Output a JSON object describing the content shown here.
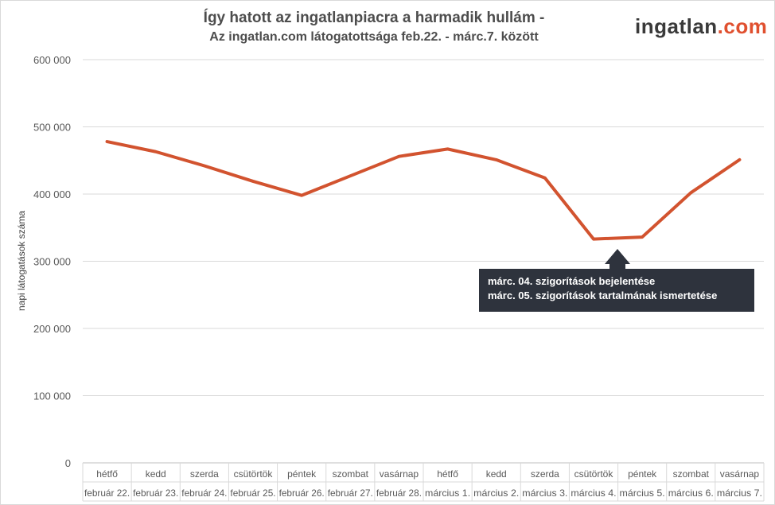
{
  "header": {
    "title_line1": "Így hatott az ingatlanpiacra a harmadik hullám -",
    "title_line2": "Az ingatlan.com látogatottsága feb.22. - márc.7. között",
    "logo_main": "ingatlan",
    "logo_suffix": ".com"
  },
  "annotation": {
    "line1": "márc. 04. szigorítások bejelentése",
    "line2": "márc. 05. szigorítások tartalmának ismertetése"
  },
  "chart_data": {
    "type": "line",
    "title": "Így hatott az ingatlanpiacra a harmadik hullám - Az ingatlan.com látogatottsága feb.22. - márc.7. között",
    "xlabel": "",
    "ylabel": "napi látogatások  száma",
    "ylim": [
      0,
      600000
    ],
    "yticks": [
      0,
      100000,
      200000,
      300000,
      400000,
      500000,
      600000
    ],
    "ytick_labels": [
      "0",
      "100 000",
      "200 000",
      "300 000",
      "400 000",
      "500 000",
      "600 000"
    ],
    "grid": true,
    "categories_day": [
      "hétfő",
      "kedd",
      "szerda",
      "csütörtök",
      "péntek",
      "szombat",
      "vasárnap",
      "hétfő",
      "kedd",
      "szerda",
      "csütörtök",
      "péntek",
      "szombat",
      "vasárnap"
    ],
    "categories_date": [
      "február 22.",
      "február 23.",
      "február 24.",
      "február 25.",
      "február 26.",
      "február 27.",
      "február 28.",
      "március 1.",
      "március 2.",
      "március 3.",
      "március 4.",
      "március 5.",
      "március 6.",
      "március 7."
    ],
    "series": [
      {
        "values": [
          478000,
          463000,
          442000,
          419000,
          398000,
          427000,
          456000,
          467000,
          451000,
          424000,
          333000,
          336000,
          402000,
          451000
        ]
      }
    ],
    "line_color": "#d2532f"
  }
}
